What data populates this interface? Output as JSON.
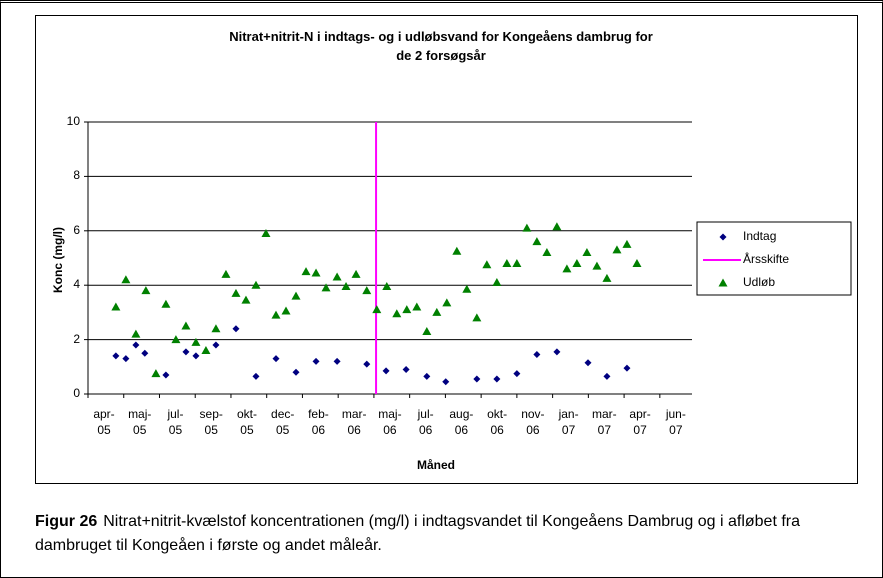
{
  "chart_data": {
    "type": "scatter",
    "title": "Nitrat+nitrit-N i indtags- og i udløbsvand for  Kongeåens dambrug for\nde 2 forsøgsår",
    "xlabel": "Måned",
    "ylabel": "Konc (mg/l)",
    "xlim": [
      0,
      16.9
    ],
    "xticks": [
      {
        "value": 0,
        "label": "apr-\n05"
      },
      {
        "value": 1,
        "label": "maj-\n05"
      },
      {
        "value": 2,
        "label": "jul-\n05"
      },
      {
        "value": 3,
        "label": "sep-\n05"
      },
      {
        "value": 4,
        "label": "okt-\n05"
      },
      {
        "value": 5,
        "label": "dec-\n05"
      },
      {
        "value": 6,
        "label": "feb-\n06"
      },
      {
        "value": 7,
        "label": "mar-\n06"
      },
      {
        "value": 8,
        "label": "maj-\n06"
      },
      {
        "value": 9,
        "label": "jul-\n06"
      },
      {
        "value": 10,
        "label": "aug-\n06"
      },
      {
        "value": 11,
        "label": "okt-\n06"
      },
      {
        "value": 12,
        "label": "nov-\n06"
      },
      {
        "value": 13,
        "label": "jan-\n07"
      },
      {
        "value": 14,
        "label": "mar-\n07"
      },
      {
        "value": 15,
        "label": "apr-\n07"
      },
      {
        "value": 16,
        "label": "jun-\n07"
      }
    ],
    "ylim": [
      0,
      10
    ],
    "yticks": [
      0,
      2,
      4,
      6,
      8,
      10
    ],
    "grid": true,
    "legend": "right",
    "series": [
      {
        "name": "Indtag",
        "color": "#000080",
        "marker": "diamond",
        "x": [
          0.78,
          1.06,
          1.34,
          1.59,
          2.18,
          2.74,
          3.02,
          3.58,
          4.14,
          4.7,
          5.26,
          5.82,
          6.38,
          6.97,
          7.8,
          8.34,
          8.9,
          9.48,
          10.01,
          10.88,
          11.44,
          12.0,
          12.56,
          13.12,
          13.99,
          14.52,
          15.08
        ],
        "values": [
          1.4,
          1.3,
          1.8,
          1.5,
          0.7,
          1.55,
          1.4,
          1.8,
          2.4,
          0.65,
          1.3,
          0.8,
          1.2,
          1.2,
          1.1,
          0.85,
          0.9,
          0.65,
          0.45,
          0.55,
          0.55,
          0.75,
          1.45,
          1.55,
          1.15,
          0.65,
          0.95
        ]
      },
      {
        "name": "Årsskifte",
        "color": "#ff00ff",
        "marker": "line",
        "x": [
          8.06,
          8.06
        ],
        "values": [
          0,
          10
        ]
      },
      {
        "name": "Udløb",
        "color": "#008000",
        "marker": "triangle",
        "x": [
          0.78,
          1.06,
          1.34,
          1.62,
          1.9,
          2.18,
          2.46,
          2.74,
          3.02,
          3.3,
          3.58,
          3.86,
          4.14,
          4.42,
          4.7,
          4.98,
          5.26,
          5.54,
          5.82,
          6.1,
          6.38,
          6.66,
          6.97,
          7.22,
          7.5,
          7.8,
          8.08,
          8.36,
          8.64,
          8.92,
          9.2,
          9.48,
          9.76,
          10.04,
          10.32,
          10.6,
          10.88,
          11.16,
          11.44,
          11.72,
          12.0,
          12.28,
          12.56,
          12.84,
          13.12,
          13.4,
          13.68,
          13.96,
          14.24,
          14.52,
          14.8,
          15.08,
          15.36
        ],
        "values": [
          3.2,
          4.2,
          2.2,
          3.8,
          0.75,
          3.3,
          2.0,
          2.5,
          1.9,
          1.6,
          2.4,
          4.4,
          3.7,
          3.45,
          4.0,
          5.9,
          2.9,
          3.05,
          3.6,
          4.5,
          4.45,
          3.9,
          4.3,
          3.95,
          4.4,
          3.8,
          3.1,
          3.95,
          2.95,
          3.1,
          3.2,
          2.3,
          3.0,
          3.35,
          5.25,
          3.85,
          2.8,
          4.75,
          4.1,
          4.8,
          4.8,
          6.1,
          5.6,
          5.2,
          6.15,
          4.6,
          4.8,
          5.2,
          4.7,
          4.25,
          5.3,
          5.5,
          4.8
        ]
      }
    ]
  },
  "caption": {
    "label": "Figur 26",
    "text": "Nitrat+nitrit-kvælstof koncentrationen (mg/l) i indtagsvandet til Kongeåens Dambrug og i afløbet fra dambruget til Kongeåen i første og andet måleår."
  }
}
